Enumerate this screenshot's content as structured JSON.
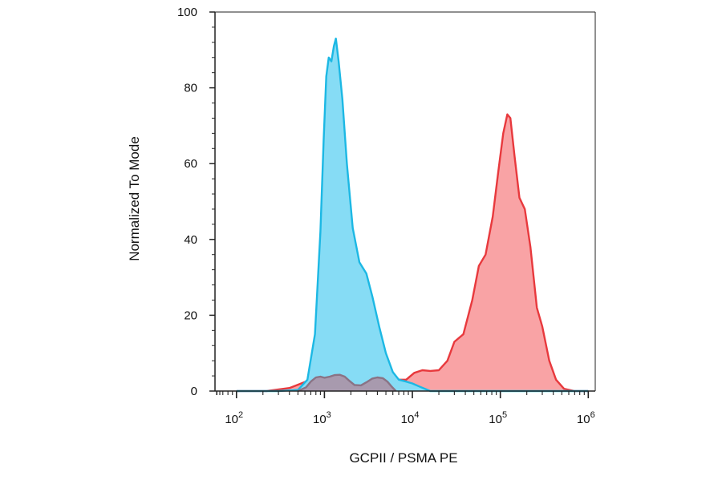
{
  "chart_data": {
    "type": "area",
    "title": "",
    "xlabel": "GCPII / PSMA PE",
    "ylabel": "Normalized To Mode",
    "x_scale": "log",
    "xlim": [
      57,
      1200000
    ],
    "ylim": [
      0,
      100
    ],
    "grid": false,
    "legend": "none",
    "y_ticks": [
      {
        "value": 0,
        "label": "0"
      },
      {
        "value": 20,
        "label": "20"
      },
      {
        "value": 40,
        "label": "40"
      },
      {
        "value": 60,
        "label": "60"
      },
      {
        "value": 80,
        "label": "80"
      },
      {
        "value": 100,
        "label": "100"
      }
    ],
    "x_ticks": [
      {
        "value": 100,
        "base": "10",
        "exp": "2"
      },
      {
        "value": 1000,
        "base": "10",
        "exp": "3"
      },
      {
        "value": 10000,
        "base": "10",
        "exp": "4"
      },
      {
        "value": 100000,
        "base": "10",
        "exp": "5"
      },
      {
        "value": 1000000,
        "base": "10",
        "exp": "6"
      }
    ],
    "series": [
      {
        "color": "#e8393d",
        "fill": "#f9a3a5",
        "x": [
          100,
          220,
          400,
          700,
          1000,
          1300,
          1700,
          2200,
          3000,
          4000,
          5000,
          6500,
          8500,
          10500,
          13000,
          16000,
          20000,
          25000,
          30000,
          38000,
          48000,
          57000,
          68000,
          82000,
          95000,
          108000,
          120000,
          130000,
          145000,
          165000,
          190000,
          220000,
          260000,
          300000,
          360000,
          430000,
          530000,
          700000,
          1000000
        ],
        "y": [
          0,
          0,
          0.8,
          3,
          3.5,
          4,
          3.5,
          2.5,
          1.8,
          3,
          3.2,
          3,
          3,
          4.8,
          5.5,
          5.3,
          5.5,
          8,
          13,
          15,
          24,
          33,
          36,
          46,
          58,
          68,
          73,
          72,
          62,
          51,
          48,
          38,
          22,
          17,
          8,
          3,
          0.6,
          0,
          0
        ]
      },
      {
        "color": "#1cb8e4",
        "fill": "#86dcf5",
        "x": [
          100,
          300,
          500,
          640,
          780,
          900,
          980,
          1050,
          1120,
          1200,
          1280,
          1350,
          1450,
          1600,
          1800,
          2100,
          2500,
          3000,
          3500,
          4200,
          5000,
          6000,
          7000,
          8500,
          10000,
          12000,
          16000,
          20000,
          1000000
        ],
        "y": [
          0,
          0,
          0.3,
          3,
          15,
          42,
          66,
          83,
          88,
          87,
          91,
          93,
          87,
          77,
          60,
          43,
          34,
          31,
          25,
          17,
          10,
          5,
          3,
          2.5,
          2,
          1.2,
          0,
          0,
          0
        ]
      },
      {
        "color": "#8a7385",
        "fill": "#a89aae",
        "x": [
          500,
          620,
          700,
          800,
          900,
          1000,
          1150,
          1300,
          1500,
          1700,
          1900,
          2200,
          2600,
          3000,
          3500,
          4000,
          4600,
          5200,
          5800,
          6500
        ],
        "y": [
          0,
          1,
          2.5,
          3.6,
          3.8,
          3.5,
          3.8,
          4.2,
          4.3,
          3.8,
          2.8,
          1.6,
          1.5,
          2.3,
          3.3,
          3.6,
          3.4,
          2.5,
          1.2,
          0
        ]
      }
    ]
  }
}
